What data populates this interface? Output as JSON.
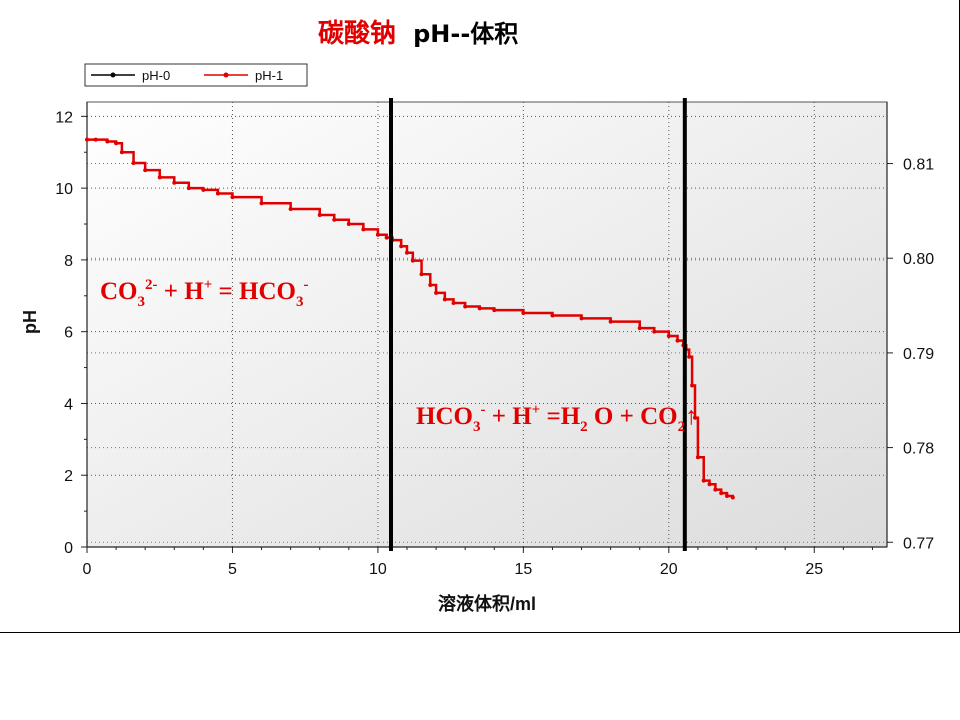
{
  "title": {
    "compound": "碳酸钠",
    "rest": "pH--体积"
  },
  "legend": [
    {
      "label": "pH-0",
      "color": "#000000"
    },
    {
      "label": "pH-1",
      "color": "#e00000"
    }
  ],
  "annotations": {
    "eq1": {
      "text1": "CO",
      "sub1": "3",
      "sup1": "2-",
      "text2": " + H",
      "sup2": "+",
      "text3": " = HCO",
      "sub3": "3",
      "sup3": "-"
    },
    "eq2": {
      "text1": "HCO",
      "sub1": "3",
      "sup1": "-",
      "text2": " + H",
      "sup2": "+",
      "text3": " =H",
      "sub3": "2",
      "text4": " O + CO",
      "sub4": "2",
      "arrow": "↑"
    }
  },
  "chart_data": {
    "type": "line",
    "title": "碳酸钠 pH--体积",
    "xlabel": "溶液体积/ml",
    "ylabel": "pH",
    "xlim": [
      0,
      27.5
    ],
    "ylim": [
      0,
      12.4
    ],
    "y2lim": [
      0.7695,
      0.8165
    ],
    "x_ticks": [
      0,
      5,
      10,
      15,
      20,
      25
    ],
    "y_ticks": [
      0,
      2,
      4,
      6,
      8,
      10,
      12
    ],
    "y2_ticks": [
      0.77,
      0.78,
      0.79,
      0.8,
      0.81
    ],
    "grid": true,
    "legend_position": "top-left",
    "vertical_markers": [
      10.45,
      20.55
    ],
    "series": [
      {
        "name": "pH-1",
        "color": "#e00000",
        "x": [
          0,
          0.3,
          0.7,
          1.0,
          1.2,
          1.6,
          2.0,
          2.5,
          3.0,
          3.5,
          4.0,
          4.5,
          5.0,
          6.0,
          7.0,
          8.0,
          8.5,
          9.0,
          9.5,
          10.0,
          10.3,
          10.5,
          10.8,
          11.0,
          11.2,
          11.5,
          11.8,
          12.0,
          12.3,
          12.6,
          13.0,
          13.5,
          14.0,
          15.0,
          16.0,
          17.0,
          18.0,
          19.0,
          19.5,
          20.0,
          20.3,
          20.5,
          20.6,
          20.7,
          20.8,
          20.9,
          21.0,
          21.2,
          21.4,
          21.6,
          21.8,
          22.0,
          22.2
        ],
        "values": [
          11.35,
          11.35,
          11.3,
          11.25,
          11.0,
          10.7,
          10.5,
          10.3,
          10.15,
          10.0,
          9.95,
          9.85,
          9.75,
          9.58,
          9.42,
          9.25,
          9.12,
          9.0,
          8.85,
          8.7,
          8.62,
          8.55,
          8.38,
          8.2,
          7.98,
          7.6,
          7.3,
          7.08,
          6.9,
          6.8,
          6.7,
          6.65,
          6.6,
          6.52,
          6.45,
          6.37,
          6.28,
          6.1,
          6.0,
          5.88,
          5.75,
          5.62,
          5.5,
          5.3,
          4.5,
          3.6,
          2.5,
          1.85,
          1.75,
          1.6,
          1.5,
          1.42,
          1.38
        ]
      }
    ]
  }
}
